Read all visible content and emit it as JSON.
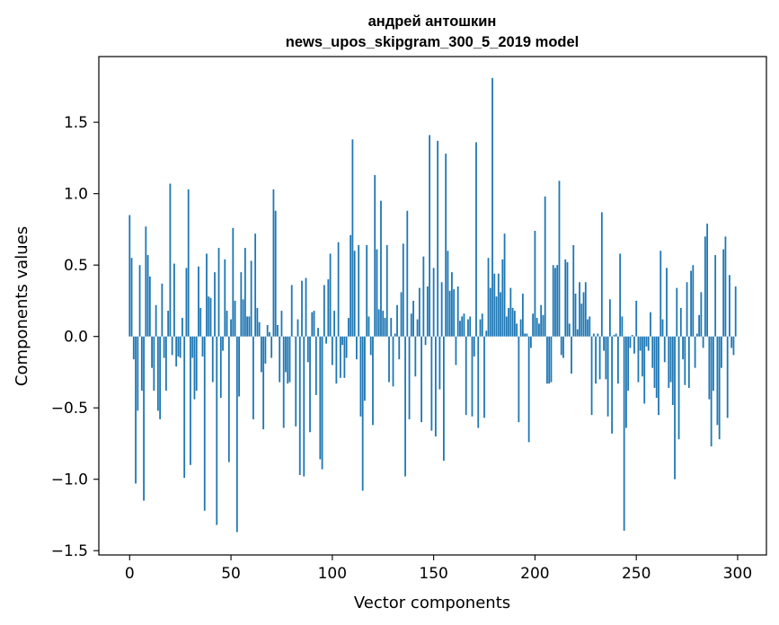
{
  "chart_data": {
    "type": "bar",
    "title": "андрей антошкин",
    "subtitle": "news_upos_skipgram_300_5_2019 model",
    "xlabel": "Vector components",
    "ylabel": "Components values",
    "xlim": [
      -15.2,
      314.2
    ],
    "ylim": [
      -1.53,
      1.96
    ],
    "x_ticks": [
      0,
      50,
      100,
      150,
      200,
      250,
      300
    ],
    "x_tick_labels": [
      "0",
      "50",
      "100",
      "150",
      "200",
      "250",
      "300"
    ],
    "y_ticks": [
      -1.5,
      -1.0,
      -0.5,
      0.0,
      0.5,
      1.0,
      1.5
    ],
    "y_tick_labels": [
      "−1.5",
      "−1.0",
      "−0.5",
      "0.0",
      "0.5",
      "1.0",
      "1.5"
    ],
    "bar_color": "#1f77b4",
    "grid": false,
    "values": [
      0.85,
      0.55,
      -0.16,
      -1.03,
      -0.52,
      0.5,
      -0.38,
      -1.15,
      0.77,
      0.57,
      0.42,
      -0.22,
      -0.38,
      0.22,
      -0.52,
      -0.58,
      0.37,
      -0.15,
      -0.38,
      0.18,
      1.07,
      -0.13,
      0.51,
      -0.21,
      -0.14,
      -0.15,
      0.13,
      -0.99,
      0.48,
      1.03,
      -0.9,
      -0.15,
      -0.44,
      -0.38,
      0.49,
      0.2,
      -0.14,
      -1.22,
      0.58,
      0.28,
      0.27,
      -0.32,
      0.45,
      -1.32,
      0.62,
      -0.43,
      -0.1,
      0.54,
      0.18,
      -0.88,
      0.12,
      0.76,
      0.25,
      -1.37,
      -0.42,
      0.45,
      0.26,
      0.62,
      0.14,
      0.14,
      0.53,
      -0.58,
      0.72,
      0.2,
      0.1,
      -0.25,
      -0.65,
      -0.19,
      0.08,
      0.03,
      -0.15,
      1.03,
      0.88,
      0.08,
      -0.32,
      0.18,
      -0.64,
      -0.25,
      -0.33,
      -0.32,
      0.36,
      0.0,
      -0.63,
      0.12,
      -0.97,
      0.39,
      -0.98,
      0.41,
      -0.18,
      -0.67,
      0.17,
      0.18,
      -0.41,
      0.06,
      -0.86,
      -0.93,
      0.36,
      -0.05,
      0.4,
      0.58,
      -0.2,
      0.18,
      -0.33,
      0.66,
      -0.29,
      -0.06,
      -0.29,
      -0.15,
      0.13,
      0.71,
      1.38,
      0.6,
      -0.16,
      0.64,
      -0.56,
      -1.08,
      -0.45,
      0.64,
      0.14,
      -0.13,
      -0.62,
      1.13,
      0.61,
      0.19,
      0.95,
      0.18,
      0.13,
      0.64,
      -0.32,
      0.13,
      -0.35,
      0.02,
      0.22,
      -0.16,
      0.31,
      0.65,
      -0.98,
      0.88,
      -0.58,
      0.16,
      0.25,
      -0.28,
      0.12,
      0.34,
      -0.6,
      0.56,
      -0.06,
      0.35,
      1.41,
      -0.66,
      0.48,
      -0.7,
      1.37,
      -0.37,
      0.38,
      -0.87,
      1.28,
      0.6,
      0.32,
      0.45,
      0.33,
      -0.2,
      0.35,
      0.11,
      0.14,
      0.16,
      -0.55,
      0.12,
      0.14,
      -0.56,
      -0.14,
      1.36,
      -0.64,
      0.12,
      0.16,
      -0.57,
      0.04,
      0.55,
      0.34,
      1.81,
      0.44,
      0.28,
      0.44,
      0.31,
      0.54,
      0.72,
      0.14,
      0.2,
      0.34,
      0.2,
      0.18,
      0.09,
      -0.6,
      0.12,
      0.3,
      0.02,
      0.02,
      -0.74,
      -0.08,
      0.16,
      0.74,
      0.13,
      0.09,
      0.22,
      0.15,
      0.98,
      -0.33,
      -0.33,
      -0.32,
      0.5,
      0.48,
      0.5,
      1.09,
      -0.13,
      -0.15,
      0.54,
      0.52,
      0.09,
      -0.26,
      0.64,
      0.3,
      0.05,
      0.38,
      0.23,
      0.31,
      0.38,
      0.12,
      0.14,
      -0.55,
      0.02,
      -0.33,
      0.02,
      -0.3,
      0.87,
      -0.1,
      -0.3,
      -0.56,
      0.26,
      -0.68,
      0.01,
      0.02,
      -0.33,
      0.58,
      0.14,
      -1.36,
      -0.64,
      -0.38,
      -0.08,
      0.01,
      -0.12,
      0.25,
      -0.32,
      -0.1,
      -0.28,
      -0.47,
      -0.07,
      -0.1,
      0.17,
      -0.22,
      -0.36,
      -0.43,
      -0.55,
      0.6,
      0.12,
      -0.18,
      0.48,
      -0.36,
      -0.32,
      -0.48,
      -1.0,
      0.34,
      -0.72,
      0.2,
      -0.16,
      -0.34,
      0.38,
      -0.36,
      0.46,
      0.5,
      -0.22,
      0.02,
      0.15,
      0.31,
      -0.08,
      0.7,
      0.79,
      -0.44,
      -0.77,
      -0.38,
      0.57,
      -0.62,
      -0.72,
      -0.22,
      0.61,
      0.7,
      -0.57,
      0.43,
      -0.08,
      -0.13,
      0.35
    ]
  }
}
